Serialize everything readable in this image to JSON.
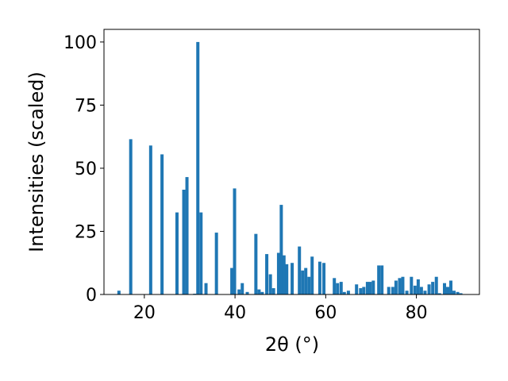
{
  "chart_data": {
    "type": "bar",
    "title": "",
    "xlabel": "2θ (°)",
    "ylabel": "Intensities (scaled)",
    "xlim": [
      11.1,
      93.9
    ],
    "ylim": [
      0,
      105
    ],
    "xticks": [
      20,
      40,
      60,
      80
    ],
    "yticks": [
      0,
      25,
      50,
      75,
      100
    ],
    "grid": false,
    "bar_color": "#1f77b4",
    "bar_width": 0.7,
    "x": [
      14.4,
      17.0,
      21.4,
      23.9,
      27.2,
      28.7,
      29.4,
      31.1,
      31.8,
      32.5,
      33.6,
      35.9,
      39.3,
      39.9,
      40.9,
      41.6,
      42.7,
      44.6,
      45.3,
      46.0,
      47.0,
      47.8,
      48.5,
      49.6,
      50.2,
      50.8,
      51.4,
      52.6,
      54.2,
      54.9,
      55.6,
      56.3,
      57.0,
      58.7,
      59.6,
      61.9,
      62.6,
      63.4,
      64.1,
      65.0,
      66.8,
      67.7,
      68.4,
      69.2,
      69.8,
      70.5,
      71.7,
      72.4,
      73.9,
      74.8,
      75.5,
      76.3,
      77.0,
      77.9,
      78.9,
      79.7,
      80.4,
      81.1,
      81.9,
      82.8,
      83.6,
      84.4,
      85.1,
      86.2,
      86.9,
      87.6,
      88.3,
      89.1,
      89.8
    ],
    "values": [
      1.5,
      61.5,
      59.0,
      55.5,
      32.5,
      41.5,
      46.5,
      0.3,
      100.0,
      32.5,
      4.5,
      24.5,
      10.5,
      42.0,
      2.0,
      4.5,
      1.0,
      24.0,
      2.0,
      1.0,
      16.0,
      8.0,
      2.5,
      16.5,
      35.5,
      15.5,
      12.0,
      12.5,
      19.0,
      9.5,
      10.5,
      7.0,
      15.0,
      13.0,
      12.5,
      6.5,
      4.5,
      5.0,
      1.0,
      1.5,
      4.0,
      2.5,
      3.0,
      5.0,
      5.0,
      5.5,
      11.5,
      11.5,
      3.0,
      3.0,
      5.5,
      6.5,
      7.0,
      1.5,
      7.0,
      3.5,
      6.0,
      3.0,
      1.5,
      4.0,
      5.0,
      7.0,
      0.5,
      4.5,
      3.0,
      5.5,
      1.5,
      1.0,
      0.5
    ]
  }
}
